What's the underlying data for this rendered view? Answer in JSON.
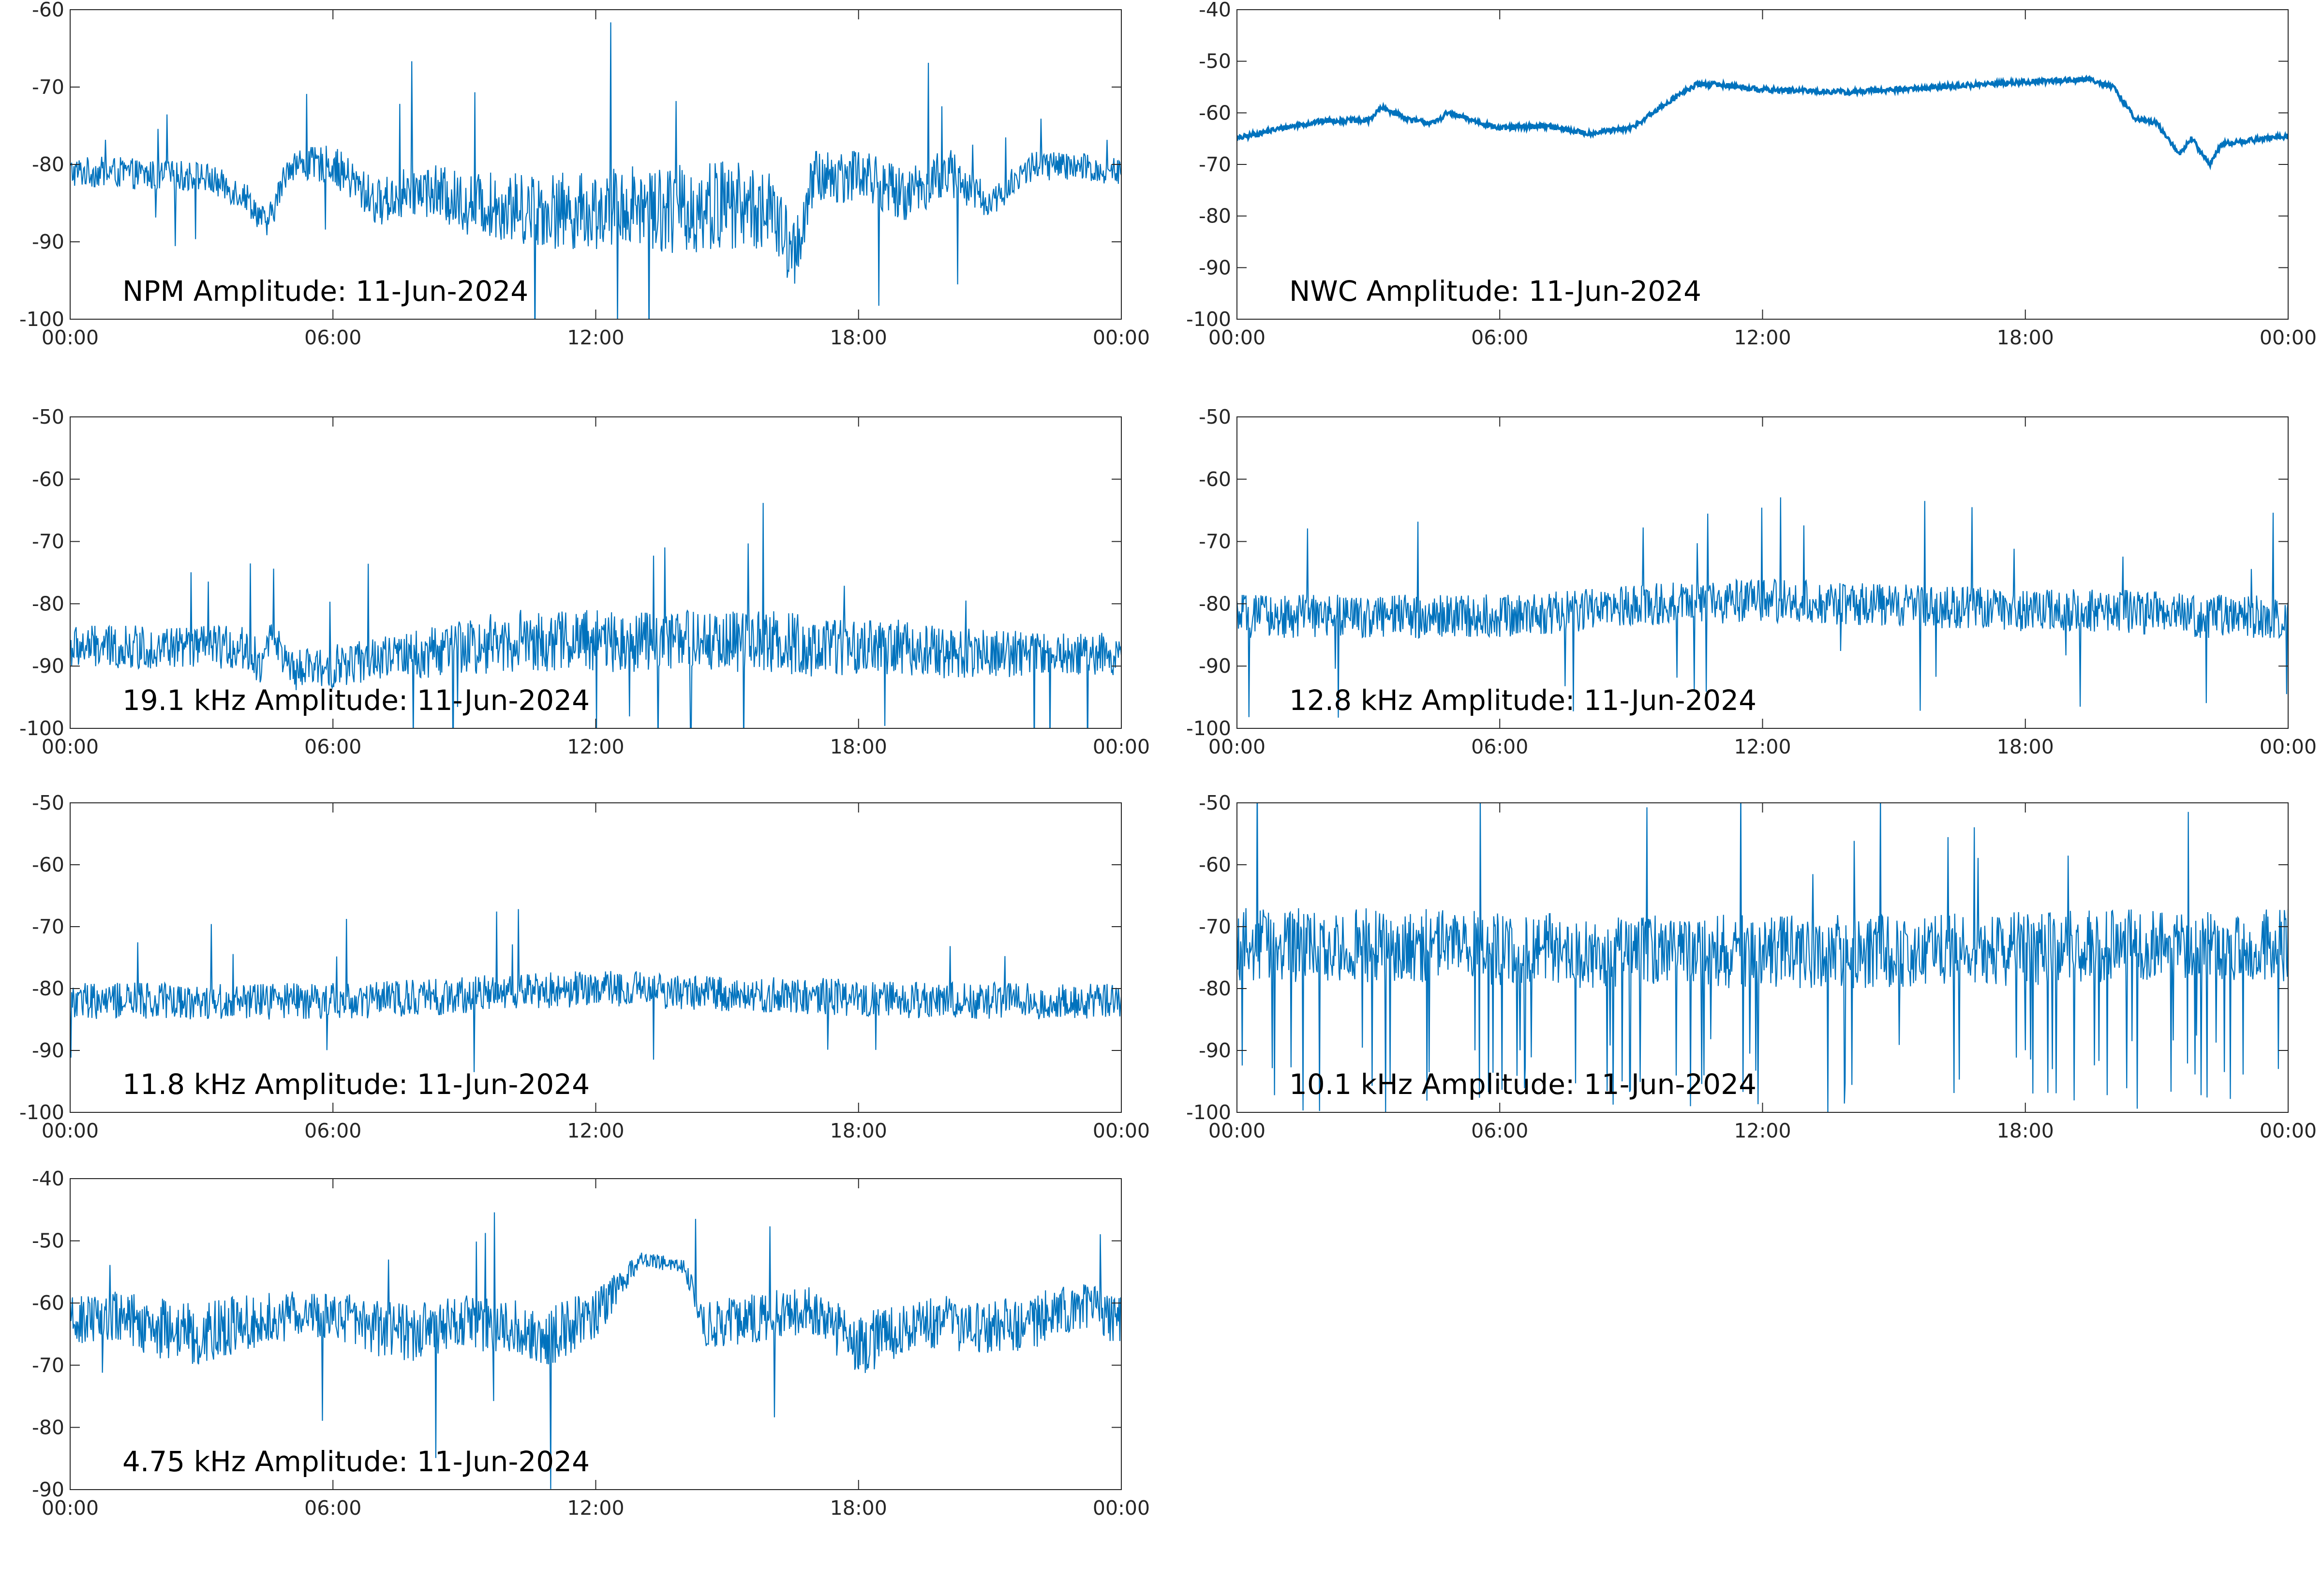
{
  "figure": {
    "line_color": "#0072BD",
    "axis_color": "#262626",
    "background": "#ffffff"
  },
  "chart_data": [
    {
      "type": "line",
      "title": "NPM Amplitude: 11-Jun-2024",
      "xlabel": "",
      "ylabel": "",
      "xlim": [
        "00:00",
        "24:00"
      ],
      "ylim": [
        -100,
        -60
      ],
      "x_ticks": [
        "00:00",
        "06:00",
        "12:00",
        "18:00",
        "00:00"
      ],
      "y_ticks": [
        "-60",
        "-70",
        "-80",
        "-90",
        "-100"
      ],
      "grid": false,
      "x_hours": [
        0,
        1,
        2,
        3,
        4,
        4.5,
        5,
        6,
        7,
        8,
        9,
        10,
        11,
        12,
        13,
        14,
        15,
        16,
        16.5,
        17,
        18,
        19,
        20,
        21,
        22,
        23,
        24
      ],
      "y_center": [
        -81,
        -81,
        -81.5,
        -81.5,
        -84,
        -88,
        -80,
        -80,
        -85,
        -83,
        -85,
        -85.5,
        -86,
        -86,
        -85,
        -86,
        -85,
        -86,
        -92,
        -82,
        -81,
        -84,
        -81,
        -85,
        -80,
        -80.5,
        -81
      ],
      "y_spread": [
        2,
        2,
        2,
        2,
        2,
        2,
        2,
        2.5,
        3,
        3.5,
        4,
        4.5,
        5,
        5,
        5.5,
        6,
        6,
        5,
        5,
        4,
        3.5,
        3.5,
        3.5,
        2,
        2,
        2,
        2
      ]
    },
    {
      "type": "line",
      "title": "NWC Amplitude: 11-Jun-2024",
      "xlabel": "",
      "ylabel": "",
      "xlim": [
        "00:00",
        "24:00"
      ],
      "ylim": [
        -100,
        -40
      ],
      "x_ticks": [
        "00:00",
        "06:00",
        "12:00",
        "18:00",
        "00:00"
      ],
      "y_ticks": [
        "-40",
        "-50",
        "-60",
        "-70",
        "-80",
        "-90",
        "-100"
      ],
      "grid": false,
      "x_hours": [
        0,
        1,
        2,
        3,
        3.3,
        3.6,
        4,
        4.5,
        4.8,
        5,
        6,
        7,
        8,
        9,
        10,
        10.5,
        11,
        12,
        14,
        16,
        18,
        19.5,
        20,
        20.5,
        21,
        21.5,
        21.8,
        22.2,
        22.5,
        23,
        24
      ],
      "y_center": [
        -65,
        -63,
        -61.5,
        -61.5,
        -59,
        -60,
        -61.5,
        -62,
        -60,
        -60.5,
        -63,
        -62.5,
        -64,
        -63,
        -57,
        -54.5,
        -54.5,
        -55.5,
        -56,
        -55,
        -54,
        -53.5,
        -55,
        -61,
        -62,
        -68,
        -65,
        -70,
        -66,
        -65.5,
        -64.5
      ],
      "y_spread": [
        0.5,
        0.5,
        0.5,
        0.5,
        0.5,
        0.5,
        0.5,
        0.5,
        0.5,
        0.5,
        0.5,
        0.5,
        0.5,
        0.5,
        0.5,
        0.5,
        0.5,
        0.5,
        0.5,
        0.5,
        0.5,
        0.5,
        0.5,
        0.5,
        0.5,
        0.5,
        0.5,
        0.5,
        0.5,
        0.5,
        0.5
      ]
    },
    {
      "type": "line",
      "title": "19.1 kHz Amplitude: 11-Jun-2024",
      "xlabel": "",
      "ylabel": "",
      "xlim": [
        "00:00",
        "24:00"
      ],
      "ylim": [
        -100,
        -50
      ],
      "x_ticks": [
        "00:00",
        "06:00",
        "12:00",
        "18:00",
        "00:00"
      ],
      "y_ticks": [
        "-50",
        "-60",
        "-70",
        "-80",
        "-90",
        "-100"
      ],
      "grid": false,
      "x_hours": [
        0,
        1,
        2,
        3,
        4,
        4.4,
        4.6,
        5,
        6,
        7,
        8,
        9,
        10,
        11,
        12,
        13,
        14,
        15,
        16,
        17,
        18,
        19,
        20,
        21,
        22,
        23,
        24
      ],
      "y_center": [
        -87,
        -87,
        -87,
        -87,
        -87,
        -90,
        -84,
        -91,
        -90,
        -89,
        -88,
        -87,
        -86,
        -86,
        -86,
        -86,
        -86,
        -86,
        -86,
        -87,
        -87,
        -87,
        -88,
        -88,
        -88,
        -88,
        -88
      ],
      "y_spread": [
        3.5,
        3.5,
        3.5,
        3.5,
        3.5,
        3.5,
        2,
        3.5,
        3.5,
        3.5,
        4,
        4.5,
        5,
        5,
        5,
        5,
        5,
        5,
        5,
        5,
        4.5,
        4.5,
        4,
        4,
        3.5,
        3.5,
        3.5
      ]
    },
    {
      "type": "line",
      "title": "12.8 kHz Amplitude: 11-Jun-2024",
      "xlabel": "",
      "ylabel": "",
      "xlim": [
        "00:00",
        "24:00"
      ],
      "ylim": [
        -100,
        -50
      ],
      "x_ticks": [
        "00:00",
        "06:00",
        "12:00",
        "18:00",
        "00:00"
      ],
      "y_ticks": [
        "-50",
        "-60",
        "-70",
        "-80",
        "-90",
        "-100"
      ],
      "grid": false,
      "x_hours": [
        0,
        2,
        4,
        6,
        8,
        10,
        12,
        14,
        16,
        18,
        20,
        22,
        24
      ],
      "y_center": [
        -82,
        -82,
        -82,
        -82,
        -81,
        -80,
        -79.5,
        -80,
        -80.5,
        -81,
        -81,
        -82,
        -82
      ],
      "y_spread": [
        3.5,
        3.5,
        3.5,
        3.5,
        3.5,
        3.5,
        3.5,
        3.5,
        3.5,
        3.5,
        3.5,
        3.5,
        3.5
      ]
    },
    {
      "type": "line",
      "title": "11.8 kHz Amplitude: 11-Jun-2024",
      "xlabel": "",
      "ylabel": "",
      "xlim": [
        "00:00",
        "24:00"
      ],
      "ylim": [
        -100,
        -50
      ],
      "x_ticks": [
        "00:00",
        "06:00",
        "12:00",
        "18:00",
        "00:00"
      ],
      "y_ticks": [
        "-50",
        "-60",
        "-70",
        "-80",
        "-90",
        "-100"
      ],
      "grid": false,
      "x_hours": [
        0,
        2,
        4,
        6,
        8,
        10,
        12,
        14,
        16,
        18,
        20,
        22,
        24
      ],
      "y_center": [
        -82,
        -82,
        -82,
        -82,
        -81.5,
        -80.5,
        -80,
        -80.5,
        -81,
        -81.5,
        -82,
        -82,
        -82
      ],
      "y_spread": [
        3,
        3,
        3,
        3,
        3,
        3,
        3,
        3,
        3,
        3,
        3,
        3,
        3
      ]
    },
    {
      "type": "line",
      "title": "10.1 kHz Amplitude: 11-Jun-2024",
      "xlabel": "",
      "ylabel": "",
      "xlim": [
        "00:00",
        "24:00"
      ],
      "ylim": [
        -100,
        -50
      ],
      "x_ticks": [
        "00:00",
        "06:00",
        "12:00",
        "18:00",
        "00:00"
      ],
      "y_ticks": [
        "-50",
        "-60",
        "-70",
        "-80",
        "-90",
        "-100"
      ],
      "grid": false,
      "x_hours": [
        0,
        4,
        8,
        12,
        16,
        20,
        24
      ],
      "y_center": [
        -73,
        -73,
        -74,
        -74,
        -74,
        -73,
        -73
      ],
      "y_spread": [
        6,
        6,
        6,
        6,
        6,
        6,
        6
      ]
    },
    {
      "type": "line",
      "title": "4.75 kHz Amplitude: 11-Jun-2024",
      "xlabel": "",
      "ylabel": "",
      "xlim": [
        "00:00",
        "24:00"
      ],
      "ylim": [
        -90,
        -40
      ],
      "x_ticks": [
        "00:00",
        "06:00",
        "12:00",
        "18:00",
        "00:00"
      ],
      "y_ticks": [
        "-40",
        "-50",
        "-60",
        "-70",
        "-80",
        "-90"
      ],
      "grid": false,
      "x_hours": [
        0,
        1,
        2,
        3,
        4,
        5,
        6,
        7,
        8,
        9,
        10,
        11,
        12,
        13,
        14,
        14.5,
        15,
        16,
        17,
        18,
        19,
        20,
        21,
        22,
        23,
        24
      ],
      "y_center": [
        -63,
        -62,
        -64,
        -65,
        -63,
        -62,
        -62,
        -64,
        -65,
        -63,
        -64,
        -65,
        -62,
        -53,
        -54,
        -64,
        -63,
        -62,
        -61,
        -67,
        -64,
        -63,
        -64,
        -63,
        -60,
        -63
      ],
      "y_spread": [
        4,
        4,
        5,
        5,
        4.5,
        4,
        4,
        4.5,
        5,
        4.5,
        4.5,
        5,
        4,
        1.2,
        1.2,
        4,
        4,
        4,
        4,
        5,
        4.5,
        4.5,
        4.5,
        4.5,
        4,
        4
      ]
    }
  ]
}
